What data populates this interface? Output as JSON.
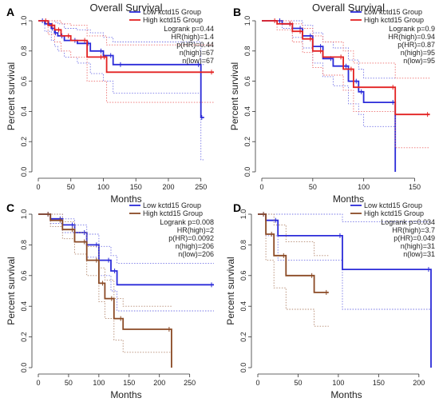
{
  "chart_data": [
    {
      "panel": "A",
      "type": "line",
      "title": "Overall Survival",
      "xlabel": "Months",
      "ylabel": "Percent survival",
      "xlim": [
        0,
        270
      ],
      "ylim": [
        0,
        1.0
      ],
      "xticks": [
        "0",
        "50",
        "100",
        "150",
        "200",
        "250"
      ],
      "yticks": [
        "0.0",
        "0.2",
        "0.4",
        "0.6",
        "0.8",
        "1.0"
      ],
      "legend": [
        "Low kctd15 Group",
        "High kctd15 Group"
      ],
      "stats": [
        "Logrank p=0.44",
        "HR(high)=1.4",
        "p(HR)=0.44",
        "n(high)=67",
        "n(low)=67"
      ],
      "series": [
        {
          "name": "Low kctd15 Group",
          "color": "#2b2bd9",
          "x": [
            0,
            10,
            20,
            25,
            30,
            40,
            60,
            80,
            100,
            115,
            130,
            250,
            255
          ],
          "y": [
            1.0,
            0.98,
            0.95,
            0.92,
            0.9,
            0.87,
            0.85,
            0.8,
            0.77,
            0.71,
            0.71,
            0.36,
            0.36
          ],
          "ci_upper": [
            1.0,
            1.0,
            1.0,
            0.99,
            0.98,
            0.95,
            0.94,
            0.92,
            0.89,
            0.86,
            0.86,
            0.71,
            0.71
          ],
          "ci_lower": [
            1.0,
            0.93,
            0.87,
            0.83,
            0.8,
            0.76,
            0.72,
            0.65,
            0.6,
            0.52,
            0.52,
            0.08,
            0.08
          ]
        },
        {
          "name": "High kctd15 Group",
          "color": "#e32222",
          "x": [
            0,
            15,
            25,
            35,
            50,
            75,
            100,
            105,
            270
          ],
          "y": [
            1.0,
            0.97,
            0.94,
            0.9,
            0.87,
            0.76,
            0.76,
            0.66,
            0.66
          ],
          "ci_upper": [
            1.0,
            1.0,
            1.0,
            0.98,
            0.97,
            0.9,
            0.9,
            0.84,
            0.84
          ],
          "ci_lower": [
            1.0,
            0.91,
            0.86,
            0.8,
            0.76,
            0.6,
            0.6,
            0.46,
            0.46
          ]
        }
      ]
    },
    {
      "panel": "B",
      "type": "line",
      "title": "Overall Survival",
      "xlabel": "Months",
      "ylabel": "Percent survival",
      "xlim": [
        0,
        170
      ],
      "ylim": [
        0,
        1.0
      ],
      "xticks": [
        "0",
        "50",
        "100",
        "150"
      ],
      "yticks": [
        "0.0",
        "0.2",
        "0.4",
        "0.6",
        "0.8",
        "1.0"
      ],
      "legend": [
        "Low kctd15 Group",
        "High kctd15 Group"
      ],
      "stats": [
        "Logrank p=0.9",
        "HR(high)=0.94",
        "p(HR)=0.87",
        "n(high)=95",
        "n(low)=95"
      ],
      "series": [
        {
          "name": "Low kctd15 Group",
          "color": "#2b2bd9",
          "x": [
            0,
            20,
            30,
            40,
            50,
            60,
            70,
            85,
            95,
            100,
            131,
            131
          ],
          "y": [
            1.0,
            0.98,
            0.95,
            0.9,
            0.83,
            0.75,
            0.7,
            0.6,
            0.53,
            0.46,
            0.46,
            0.0
          ],
          "ci_upper": [
            1.0,
            1.0,
            1.0,
            0.97,
            0.92,
            0.86,
            0.82,
            0.74,
            0.68,
            0.62,
            0.62,
            0.62
          ],
          "ci_lower": [
            1.0,
            0.95,
            0.89,
            0.82,
            0.72,
            0.63,
            0.57,
            0.45,
            0.38,
            0.3,
            0.3,
            0.0
          ]
        },
        {
          "name": "High kctd15 Group",
          "color": "#e32222",
          "x": [
            0,
            15,
            30,
            40,
            50,
            60,
            80,
            90,
            131,
            165
          ],
          "y": [
            1.0,
            0.98,
            0.93,
            0.88,
            0.8,
            0.76,
            0.68,
            0.56,
            0.38,
            0.38
          ],
          "ci_upper": [
            1.0,
            1.0,
            0.98,
            0.95,
            0.9,
            0.86,
            0.8,
            0.72,
            0.62,
            0.62
          ],
          "ci_lower": [
            1.0,
            0.94,
            0.86,
            0.79,
            0.69,
            0.64,
            0.54,
            0.4,
            0.16,
            0.16
          ]
        }
      ]
    },
    {
      "panel": "C",
      "type": "line",
      "xlabel": "Months",
      "ylabel": "Percent survival",
      "xlim": [
        0,
        290
      ],
      "ylim": [
        0,
        1.0
      ],
      "xticks": [
        "0",
        "50",
        "100",
        "150",
        "200",
        "250"
      ],
      "yticks": [
        "0.0",
        "0.2",
        "0.4",
        "0.6",
        "0.8",
        "1.0"
      ],
      "legend": [
        "Low kctd15 Group",
        "High kctd15 Group"
      ],
      "stats": [
        "Logrank p=0.008",
        "HR(high)=2",
        "p(HR)=0.0092",
        "n(high)=206",
        "n(low)=206"
      ],
      "series": [
        {
          "name": "Low kctd15 Group",
          "color": "#2b2bd9",
          "x": [
            0,
            20,
            40,
            60,
            80,
            100,
            120,
            130,
            290
          ],
          "y": [
            1.0,
            0.97,
            0.93,
            0.88,
            0.8,
            0.7,
            0.63,
            0.54,
            0.54
          ],
          "ci_upper": [
            1.0,
            1.0,
            0.97,
            0.93,
            0.87,
            0.79,
            0.73,
            0.68,
            0.68
          ],
          "ci_lower": [
            1.0,
            0.94,
            0.88,
            0.82,
            0.72,
            0.6,
            0.5,
            0.37,
            0.37
          ]
        },
        {
          "name": "High kctd15 Group",
          "color": "#8b4a25",
          "x": [
            0,
            20,
            40,
            60,
            80,
            100,
            110,
            125,
            140,
            220,
            220
          ],
          "y": [
            1.0,
            0.96,
            0.9,
            0.82,
            0.7,
            0.55,
            0.45,
            0.32,
            0.25,
            0.25,
            0.0
          ],
          "ci_upper": [
            1.0,
            1.0,
            0.95,
            0.88,
            0.79,
            0.65,
            0.57,
            0.45,
            0.4,
            0.4,
            0.4
          ],
          "ci_lower": [
            1.0,
            0.92,
            0.84,
            0.74,
            0.6,
            0.43,
            0.32,
            0.18,
            0.1,
            0.1,
            0.0
          ]
        }
      ]
    },
    {
      "panel": "D",
      "type": "line",
      "xlabel": "Months",
      "ylabel": "Percent survival",
      "xlim": [
        0,
        220
      ],
      "ylim": [
        0,
        1.0
      ],
      "xticks": [
        "0",
        "50",
        "100",
        "150",
        "200"
      ],
      "yticks": [
        "0.0",
        "0.2",
        "0.4",
        "0.6",
        "0.8",
        "1.0"
      ],
      "legend": [
        "Low kctd15 Group",
        "High kctd15 Group"
      ],
      "stats": [
        "Logrank p=0.034",
        "HR(high)=3.7",
        "p(HR)=0.049",
        "n(high)=31",
        "n(low)=31"
      ],
      "series": [
        {
          "name": "Low kctd15 Group",
          "color": "#2b2bd9",
          "x": [
            0,
            10,
            25,
            105,
            215,
            215
          ],
          "y": [
            1.0,
            0.96,
            0.86,
            0.64,
            0.64,
            0.0
          ],
          "ci_upper": [
            1.0,
            1.0,
            1.0,
            0.95,
            0.95,
            0.95
          ],
          "ci_lower": [
            1.0,
            0.86,
            0.7,
            0.38,
            0.38,
            0.0
          ]
        },
        {
          "name": "High kctd15 Group",
          "color": "#8b4a25",
          "x": [
            0,
            10,
            20,
            35,
            70,
            88
          ],
          "y": [
            1.0,
            0.87,
            0.73,
            0.6,
            0.49,
            0.49
          ],
          "ci_upper": [
            1.0,
            1.0,
            0.93,
            0.82,
            0.73,
            0.73
          ],
          "ci_lower": [
            1.0,
            0.7,
            0.52,
            0.38,
            0.27,
            0.27
          ]
        }
      ]
    }
  ]
}
